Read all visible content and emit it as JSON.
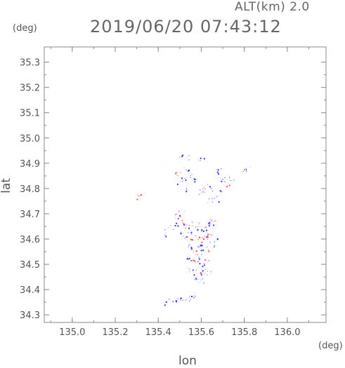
{
  "header": {
    "alt_label": "ALT(km) 2.0",
    "timestamp": "2019/06/20 07:43:12"
  },
  "axes": {
    "y_unit": "(deg)",
    "x_unit": "(deg)",
    "xlabel": "lon",
    "ylabel": "lat"
  },
  "colors": {
    "frame": "#888888",
    "positive": "#ff4d4d",
    "positive_light": "#ffb3b3",
    "negative": "#3b3bff",
    "negative_light": "#b3b3ff"
  },
  "chart_data": {
    "type": "heatmap",
    "title": "",
    "xlabel": "lon",
    "ylabel": "lat",
    "xlim": [
      134.87,
      136.18
    ],
    "ylim": [
      34.27,
      35.36
    ],
    "x_ticks": [
      135.0,
      135.2,
      135.4,
      135.6,
      135.8,
      136.0
    ],
    "x_tick_labels": [
      "135.0",
      "135.2",
      "135.4",
      "135.6",
      "135.8",
      "136.0"
    ],
    "y_ticks": [
      34.3,
      34.4,
      34.5,
      34.6,
      34.7,
      34.8,
      34.9,
      35.0,
      35.1,
      35.2,
      35.3
    ],
    "y_tick_labels": [
      "34.3",
      "34.4",
      "34.5",
      "34.6",
      "34.7",
      "34.8",
      "34.9",
      "35.0",
      "35.1",
      "35.2",
      "35.3"
    ],
    "points": [
      {
        "lon": 135.51,
        "lat": 34.925,
        "sign": "neg"
      },
      {
        "lon": 135.53,
        "lat": 34.925,
        "sign": "neg"
      },
      {
        "lon": 135.6,
        "lat": 34.915,
        "sign": "neg"
      },
      {
        "lon": 135.49,
        "lat": 34.86,
        "sign": "pos"
      },
      {
        "lon": 135.53,
        "lat": 34.88,
        "sign": "neg"
      },
      {
        "lon": 135.52,
        "lat": 34.84,
        "sign": "neg"
      },
      {
        "lon": 135.5,
        "lat": 34.82,
        "sign": "neg"
      },
      {
        "lon": 135.55,
        "lat": 34.85,
        "sign": "neg"
      },
      {
        "lon": 135.57,
        "lat": 34.83,
        "sign": "neg"
      },
      {
        "lon": 135.52,
        "lat": 34.8,
        "sign": "neg"
      },
      {
        "lon": 135.6,
        "lat": 34.79,
        "sign": "neg"
      },
      {
        "lon": 135.62,
        "lat": 34.81,
        "sign": "pos"
      },
      {
        "lon": 135.65,
        "lat": 34.8,
        "sign": "neg"
      },
      {
        "lon": 135.68,
        "lat": 34.87,
        "sign": "neg"
      },
      {
        "lon": 135.7,
        "lat": 34.84,
        "sign": "neg"
      },
      {
        "lon": 135.72,
        "lat": 34.82,
        "sign": "pos"
      },
      {
        "lon": 135.69,
        "lat": 34.79,
        "sign": "neg"
      },
      {
        "lon": 135.67,
        "lat": 34.76,
        "sign": "neg"
      },
      {
        "lon": 135.64,
        "lat": 34.75,
        "sign": "neg"
      },
      {
        "lon": 135.74,
        "lat": 34.84,
        "sign": "neg"
      },
      {
        "lon": 135.8,
        "lat": 34.875,
        "sign": "neg"
      },
      {
        "lon": 135.82,
        "lat": 34.875,
        "sign": "neg"
      },
      {
        "lon": 135.31,
        "lat": 34.77,
        "sign": "pos"
      },
      {
        "lon": 135.49,
        "lat": 34.71,
        "sign": "neg"
      },
      {
        "lon": 135.51,
        "lat": 34.7,
        "sign": "neg"
      },
      {
        "lon": 135.5,
        "lat": 34.68,
        "sign": "pos"
      },
      {
        "lon": 135.52,
        "lat": 34.67,
        "sign": "pos"
      },
      {
        "lon": 135.48,
        "lat": 34.66,
        "sign": "neg"
      },
      {
        "lon": 135.46,
        "lat": 34.65,
        "sign": "neg"
      },
      {
        "lon": 135.44,
        "lat": 34.64,
        "sign": "neg"
      },
      {
        "lon": 135.43,
        "lat": 34.62,
        "sign": "neg"
      },
      {
        "lon": 135.5,
        "lat": 34.63,
        "sign": "neg"
      },
      {
        "lon": 135.53,
        "lat": 34.65,
        "sign": "neg"
      },
      {
        "lon": 135.55,
        "lat": 34.66,
        "sign": "pos"
      },
      {
        "lon": 135.57,
        "lat": 34.64,
        "sign": "neg"
      },
      {
        "lon": 135.59,
        "lat": 34.66,
        "sign": "pos"
      },
      {
        "lon": 135.61,
        "lat": 34.64,
        "sign": "neg"
      },
      {
        "lon": 135.63,
        "lat": 34.66,
        "sign": "neg"
      },
      {
        "lon": 135.65,
        "lat": 34.68,
        "sign": "pos"
      },
      {
        "lon": 135.66,
        "lat": 34.66,
        "sign": "neg"
      },
      {
        "lon": 135.52,
        "lat": 34.61,
        "sign": "pos"
      },
      {
        "lon": 135.54,
        "lat": 34.62,
        "sign": "neg"
      },
      {
        "lon": 135.56,
        "lat": 34.6,
        "sign": "pos"
      },
      {
        "lon": 135.58,
        "lat": 34.61,
        "sign": "neg"
      },
      {
        "lon": 135.6,
        "lat": 34.6,
        "sign": "pos"
      },
      {
        "lon": 135.62,
        "lat": 34.62,
        "sign": "neg"
      },
      {
        "lon": 135.64,
        "lat": 34.61,
        "sign": "pos"
      },
      {
        "lon": 135.66,
        "lat": 34.6,
        "sign": "neg"
      },
      {
        "lon": 135.65,
        "lat": 34.58,
        "sign": "neg"
      },
      {
        "lon": 135.55,
        "lat": 34.57,
        "sign": "neg"
      },
      {
        "lon": 135.57,
        "lat": 34.55,
        "sign": "pos"
      },
      {
        "lon": 135.59,
        "lat": 34.57,
        "sign": "neg"
      },
      {
        "lon": 135.61,
        "lat": 34.55,
        "sign": "neg"
      },
      {
        "lon": 135.63,
        "lat": 34.56,
        "sign": "pos"
      },
      {
        "lon": 135.54,
        "lat": 34.53,
        "sign": "neg"
      },
      {
        "lon": 135.56,
        "lat": 34.51,
        "sign": "pos"
      },
      {
        "lon": 135.58,
        "lat": 34.52,
        "sign": "neg"
      },
      {
        "lon": 135.6,
        "lat": 34.5,
        "sign": "neg"
      },
      {
        "lon": 135.62,
        "lat": 34.51,
        "sign": "pos"
      },
      {
        "lon": 135.55,
        "lat": 34.48,
        "sign": "neg"
      },
      {
        "lon": 135.57,
        "lat": 34.47,
        "sign": "neg"
      },
      {
        "lon": 135.59,
        "lat": 34.46,
        "sign": "pos"
      },
      {
        "lon": 135.61,
        "lat": 34.47,
        "sign": "neg"
      },
      {
        "lon": 135.63,
        "lat": 34.47,
        "sign": "pos"
      },
      {
        "lon": 135.58,
        "lat": 34.44,
        "sign": "neg"
      },
      {
        "lon": 135.6,
        "lat": 34.44,
        "sign": "neg"
      },
      {
        "lon": 135.43,
        "lat": 34.35,
        "sign": "neg"
      },
      {
        "lon": 135.45,
        "lat": 34.355,
        "sign": "neg"
      },
      {
        "lon": 135.47,
        "lat": 34.355,
        "sign": "neg"
      },
      {
        "lon": 135.49,
        "lat": 34.36,
        "sign": "neg"
      },
      {
        "lon": 135.51,
        "lat": 34.36,
        "sign": "neg"
      },
      {
        "lon": 135.54,
        "lat": 34.365,
        "sign": "neg"
      },
      {
        "lon": 135.57,
        "lat": 34.37,
        "sign": "neg"
      }
    ]
  }
}
